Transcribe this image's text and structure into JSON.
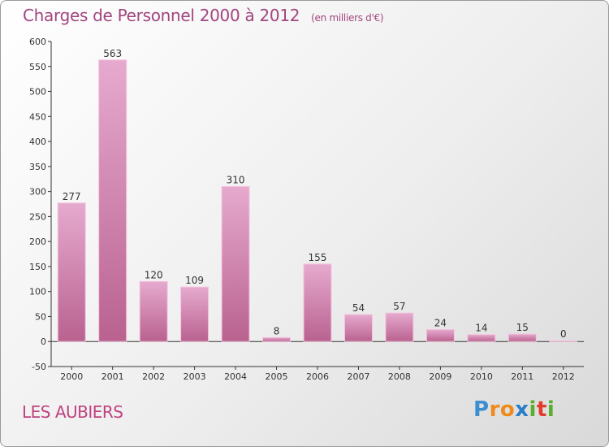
{
  "header": {
    "title": "Charges de Personnel 2000 à 2012",
    "subtitle": "(en milliers d'€)"
  },
  "footer": {
    "commune": "LES AUBIERS",
    "logo_letters": [
      "P",
      "r",
      "o",
      "x",
      "i",
      "t",
      "i"
    ],
    "logo_colors": [
      "#3a8fd0",
      "#f08a1c",
      "#f08a1c",
      "#2a7dc8",
      "#5aae2e",
      "#e33b2a",
      "#5aae2e"
    ]
  },
  "chart_data": {
    "type": "bar",
    "categories": [
      "2000",
      "2001",
      "2002",
      "2003",
      "2004",
      "2005",
      "2006",
      "2007",
      "2008",
      "2009",
      "2010",
      "2011",
      "2012"
    ],
    "values": [
      277,
      563,
      120,
      109,
      310,
      8,
      155,
      54,
      57,
      24,
      14,
      15,
      0
    ],
    "ylim": [
      -50,
      600
    ],
    "yticks": [
      -50,
      0,
      50,
      100,
      150,
      200,
      250,
      300,
      350,
      400,
      450,
      500,
      550,
      600
    ],
    "grid": false,
    "bar_color": "#b9628f",
    "bar_highlight": "#e6aace"
  }
}
